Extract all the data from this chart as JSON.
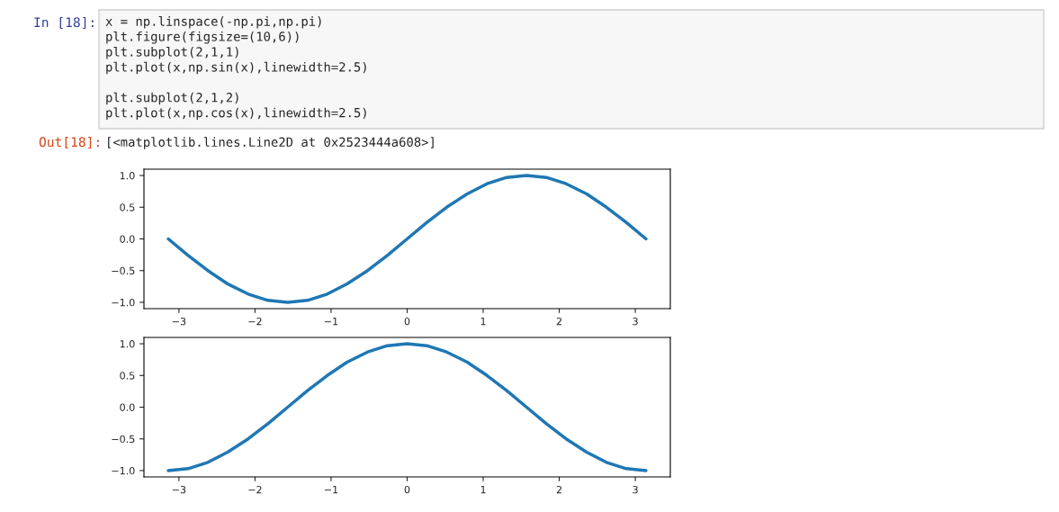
{
  "chart_data": [
    {
      "type": "line",
      "annotations": [
        "In [18]:",
        "x = np.linspace(-np.pi,np.pi)\nplt.figure(figsize=(10,6))\nplt.subplot(2,1,1)\nplt.plot(x,np.sin(x),linewidth=2.5)\n\nplt.subplot(2,1,2)\nplt.plot(x,np.cos(x),linewidth=2.5)",
        "Out[18]:",
        "[<matplotlib.lines.Line2D at 0x2523444a608>]"
      ],
      "x": [
        -3.14,
        -2.88,
        -2.62,
        -2.36,
        -2.09,
        -1.83,
        -1.57,
        -1.31,
        -1.05,
        -0.79,
        -0.52,
        -0.26,
        0,
        0.26,
        0.52,
        0.79,
        1.05,
        1.31,
        1.57,
        1.83,
        2.09,
        2.36,
        2.62,
        2.88,
        3.14
      ],
      "series": [
        {
          "color": "#1f77b4",
          "values": [
            0,
            -0.26,
            -0.5,
            -0.71,
            -0.87,
            -0.97,
            -1,
            -0.97,
            -0.87,
            -0.71,
            -0.5,
            -0.26,
            0,
            0.26,
            0.5,
            0.71,
            0.87,
            0.97,
            1,
            0.97,
            0.87,
            0.71,
            0.5,
            0.26,
            0
          ]
        }
      ],
      "xlim": [
        -3.46,
        3.46
      ],
      "ylim": [
        -1.1,
        1.1
      ],
      "xticks": [
        {
          "value": -3,
          "label": "−3"
        },
        {
          "value": -2,
          "label": "−2"
        },
        {
          "value": -1,
          "label": "−1"
        },
        0,
        1,
        2,
        3
      ],
      "yticks": [
        {
          "value": -1,
          "label": "−1.0"
        },
        {
          "value": -0.5,
          "label": "−0.5"
        },
        {
          "value": 0,
          "label": "0.0"
        },
        {
          "value": 0.5,
          "label": "0.5"
        },
        {
          "value": 1,
          "label": "1.0"
        }
      ],
      "grid": false,
      "line_style": "solid",
      "marker": "none"
    },
    {
      "type": "line",
      "x": [
        -3.14,
        -2.88,
        -2.62,
        -2.36,
        -2.09,
        -1.83,
        -1.57,
        -1.31,
        -1.05,
        -0.79,
        -0.52,
        -0.26,
        0,
        0.26,
        0.52,
        0.79,
        1.05,
        1.31,
        1.57,
        1.83,
        2.09,
        2.36,
        2.62,
        2.88,
        3.14
      ],
      "series": [
        {
          "color": "#1f77b4",
          "values": [
            -1,
            -0.97,
            -0.87,
            -0.71,
            -0.5,
            -0.26,
            0,
            0.26,
            0.5,
            0.71,
            0.87,
            0.97,
            1,
            0.97,
            0.87,
            0.71,
            0.5,
            0.26,
            0,
            -0.26,
            -0.5,
            -0.71,
            -0.87,
            -0.97,
            -1
          ]
        }
      ],
      "xlim": [
        -3.46,
        3.46
      ],
      "ylim": [
        -1.1,
        1.1
      ],
      "xticks": [
        {
          "value": -3,
          "label": "−3"
        },
        {
          "value": -2,
          "label": "−2"
        },
        {
          "value": -1,
          "label": "−1"
        },
        0,
        1,
        2,
        3
      ],
      "yticks": [
        {
          "value": -1,
          "label": "−1.0"
        },
        {
          "value": -0.5,
          "label": "−0.5"
        },
        {
          "value": 0,
          "label": "0.0"
        },
        {
          "value": 0.5,
          "label": "0.5"
        },
        {
          "value": 1,
          "label": "1.0"
        }
      ],
      "grid": false,
      "line_style": "solid",
      "marker": "none"
    }
  ]
}
